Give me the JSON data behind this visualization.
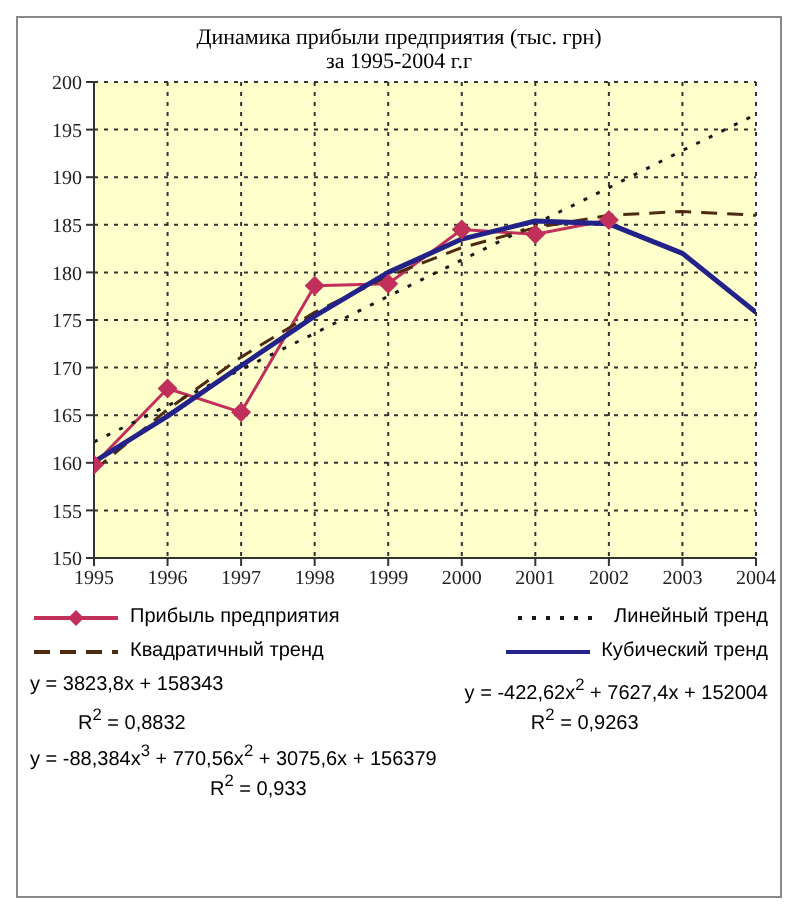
{
  "chart_data": {
    "type": "line",
    "title": "Динамика прибыли предприятия (тыс. грн)",
    "subtitle": "за 1995-2004 г.г",
    "x": [
      1995,
      1996,
      1997,
      1998,
      1999,
      2000,
      2001,
      2002,
      2003,
      2004
    ],
    "series": [
      {
        "name": "Прибыль предприятия",
        "color": "#c0305a",
        "marker": "diamond",
        "line_style": "solid",
        "values": [
          159.8,
          167.8,
          165.3,
          178.6,
          178.8,
          184.5,
          184.0,
          185.5,
          null,
          null
        ]
      },
      {
        "name": "Линейный тренд",
        "color": "#1a1a1a",
        "marker": "none",
        "line_style": "dotted",
        "values": [
          162.2,
          166.0,
          169.8,
          173.6,
          177.5,
          181.3,
          185.1,
          188.9,
          192.8,
          196.6
        ]
      },
      {
        "name": "Квадратичный тренд",
        "color": "#4d2a10",
        "marker": "none",
        "line_style": "dashed",
        "values": [
          159.2,
          165.6,
          171.1,
          175.8,
          179.6,
          182.6,
          184.7,
          186.0,
          186.4,
          186.0
        ]
      },
      {
        "name": "Кубический тренд",
        "color": "#222288",
        "marker": "none",
        "line_style": "solid",
        "values": [
          160.1,
          164.9,
          170.2,
          175.4,
          180.0,
          183.5,
          185.4,
          185.1,
          182.0,
          175.8
        ]
      }
    ],
    "xlim": [
      1995,
      2004
    ],
    "xticks": [
      1995,
      1996,
      1997,
      1998,
      1999,
      2000,
      2001,
      2002,
      2003,
      2004
    ],
    "ylim": [
      150,
      200
    ],
    "yticks": [
      150,
      155,
      160,
      165,
      170,
      175,
      180,
      185,
      190,
      195,
      200
    ],
    "grid": true,
    "legend": "bottom",
    "annotations": [
      "y = 3823,8x + 158343",
      "R$^{2}$ = 0,8832",
      "y = -422,62x$^{2}$ + 7627,4x + 152004",
      "R$^{2}$ = 0,9263",
      "y = -88,384x$^{3}$ + 770,56x$^{2}$ + 3075,6x + 156379",
      "R$^{2}$ = 0,933"
    ]
  }
}
